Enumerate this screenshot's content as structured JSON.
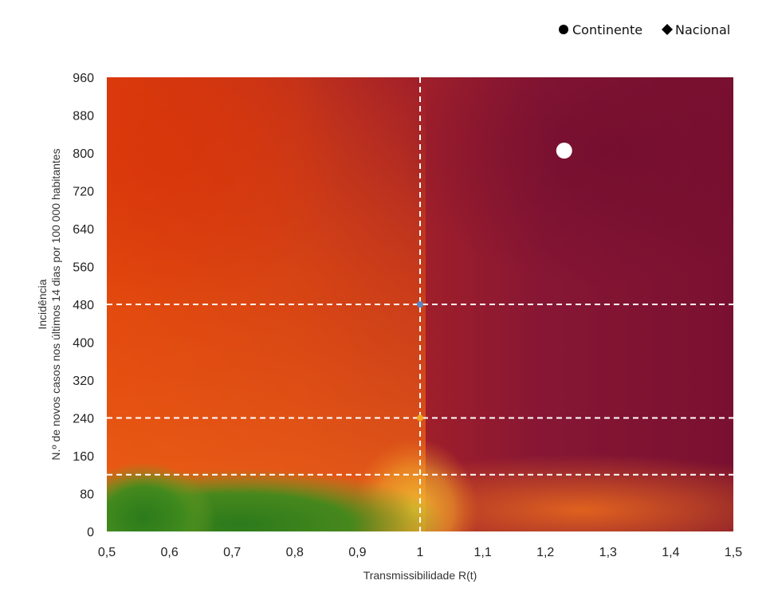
{
  "chart_data": {
    "type": "scatter",
    "title": "",
    "xlabel": "Transmissibilidade R(t)",
    "ylabel_line1": "Incidência",
    "ylabel_line2": "N.º de novos casos nos últimos 14 dias por 100 000 habitantes",
    "xlim": [
      0.5,
      1.5
    ],
    "ylim": [
      0,
      960
    ],
    "x_ticks": [
      0.5,
      0.6,
      0.7,
      0.8,
      0.9,
      1.0,
      1.1,
      1.2,
      1.3,
      1.4,
      1.5
    ],
    "x_tick_labels": [
      "0,5",
      "0,6",
      "0,7",
      "0,8",
      "0,9",
      "1",
      "1,1",
      "1,2",
      "1,3",
      "1,4",
      "1,5"
    ],
    "y_ticks": [
      0,
      80,
      160,
      240,
      320,
      400,
      480,
      560,
      640,
      720,
      800,
      880,
      960
    ],
    "y_tick_labels": [
      "0",
      "80",
      "160",
      "240",
      "320",
      "400",
      "480",
      "560",
      "640",
      "720",
      "800",
      "880",
      "960"
    ],
    "reference_lines": {
      "vertical": [
        1.0
      ],
      "horizontal": [
        120,
        240,
        480
      ],
      "style": "dashed",
      "color": "#ffffff"
    },
    "reference_markers": [
      {
        "x": 1.0,
        "y": 480,
        "color": "#5b86c6"
      },
      {
        "x": 1.0,
        "y": 240,
        "color": "#f5a623"
      }
    ],
    "background": "heatmap risk gradient (green low-left, orange/red, dark red high-right)",
    "colors": {
      "green": "#2e7d1f",
      "yellow": "#e8b423",
      "orange": "#e85a12",
      "red": "#c0301a",
      "dark_red": "#7a1030"
    },
    "series": [
      {
        "name": "Continente",
        "marker": "circle",
        "color": "#ffffff",
        "points": [
          {
            "x": 1.23,
            "y": 805
          }
        ]
      },
      {
        "name": "Nacional",
        "marker": "diamond",
        "color": "#ffffff",
        "points": [
          {
            "x": 1.23,
            "y": 800
          }
        ]
      }
    ],
    "legend": {
      "position": "top-right",
      "items": [
        {
          "label": "Continente",
          "symbol": "circle",
          "color": "#000000"
        },
        {
          "label": "Nacional",
          "symbol": "diamond",
          "color": "#000000"
        }
      ]
    },
    "grid": false
  }
}
